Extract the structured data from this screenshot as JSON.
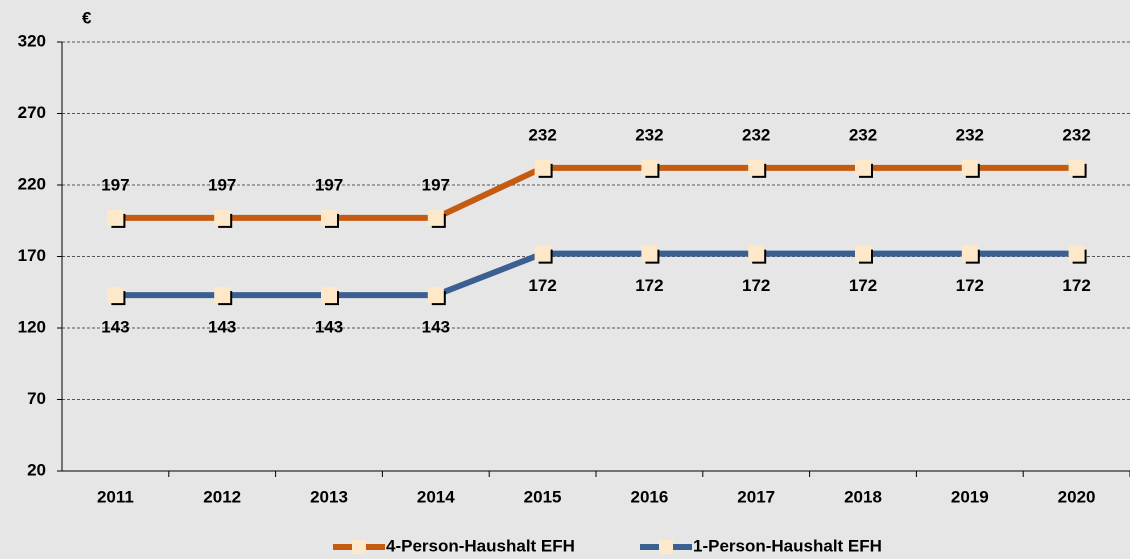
{
  "chart_data": {
    "type": "line",
    "y_label": "€",
    "categories": [
      "2011",
      "2012",
      "2013",
      "2014",
      "2015",
      "2016",
      "2017",
      "2018",
      "2019",
      "2020"
    ],
    "series": [
      {
        "name": "4-Person-Haushalt EFH",
        "color": "#c55a11",
        "values": [
          197,
          197,
          197,
          197,
          232,
          232,
          232,
          232,
          232,
          232
        ]
      },
      {
        "name": "1-Person-Haushalt EFH",
        "color": "#3c5f91",
        "values": [
          143,
          143,
          143,
          143,
          172,
          172,
          172,
          172,
          172,
          172
        ]
      }
    ],
    "ylim": [
      20,
      320
    ],
    "yticks": [
      20,
      70,
      120,
      170,
      220,
      270,
      320
    ],
    "grid": true
  }
}
